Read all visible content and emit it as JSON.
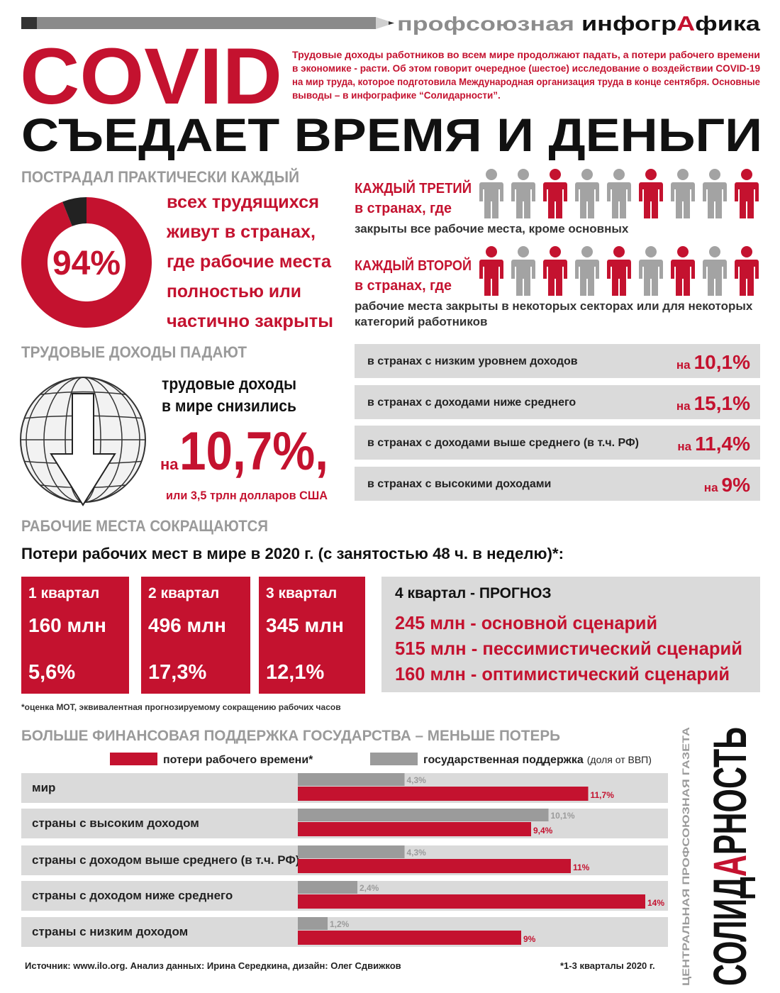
{
  "header": {
    "brand": "профсоюзная",
    "logo": [
      "инфогр",
      "А",
      "фика"
    ]
  },
  "title": "COVID",
  "subtitle": "СЪЕДАЕТ ВРЕМЯ И ДЕНЬГИ",
  "intro": [
    "Трудовые доходы работников во всем мире продолжают падать, а потери рабочего времени",
    "в экономике - расти. Об этом говорит очередное (шестое) исследование о воздействии COVID-19",
    "на мир труда, которое подготовила Международная организация труда в конце сентября. Основные",
    "выводы – в инфографике “Солидарности”."
  ],
  "affected": {
    "heading": "ПОСТРАДАЛ ПРАКТИЧЕСКИ КАЖДЫЙ",
    "share": {
      "value": 94,
      "label": "94%"
    },
    "text": [
      "всех трудящихся",
      "живут в странах,",
      "где рабочие места",
      "полностью или",
      "частично закрыты"
    ],
    "groups": [
      {
        "title": "КАЖДЫЙ ТРЕТИЙ",
        "where": "в странах, где",
        "text": [
          "закрыты все рабочие места, кроме основных"
        ]
      },
      {
        "title": "КАЖДЫЙ ВТОРОЙ",
        "where": "в странах, где",
        "text": [
          "рабочие места закрыты в некоторых секторах или для некоторых",
          "категорий работников"
        ]
      }
    ]
  },
  "income": {
    "heading": "ТРУДОВЫЕ ДОХОДЫ ПАДАЮТ",
    "text": [
      "трудовые доходы",
      "в мире снизились"
    ],
    "prefix": "на",
    "drop": "10,7%,",
    "note": "или 3,5 трлн долларов США",
    "rows": [
      {
        "label": "в странах с низким уровнем доходов",
        "prefix": "на",
        "value": "10,1%"
      },
      {
        "label": "в странах с доходами ниже среднего",
        "prefix": "на",
        "value": "15,1%"
      },
      {
        "label": "в странах с доходами выше среднего (в т.ч. РФ)",
        "prefix": "на",
        "value": "11,4%"
      },
      {
        "label": "в странах с высокими доходами",
        "prefix": "на",
        "value": "9%"
      }
    ]
  },
  "jobs": {
    "heading": "РАБОЧИЕ МЕСТА СОКРАЩАЮТСЯ",
    "subtitle": "Потери рабочих мест в мире в 2020 г. (с занятостью 48 ч. в неделю)*:",
    "quarters": [
      {
        "name": "1 квартал",
        "jobs": "160 млн",
        "share": "5,6%"
      },
      {
        "name": "2 квартал",
        "jobs": "496 млн",
        "share": "17,3%"
      },
      {
        "name": "3 квартал",
        "jobs": "345 млн",
        "share": "12,1%"
      }
    ],
    "forecast": {
      "title": "4 квартал - ПРОГНОЗ",
      "lines": [
        "245 млн - основной сценарий",
        "515 млн - пессимистический сценарий",
        "160 млн - оптимистический сценарий"
      ]
    },
    "note": "*оценка МОТ, эквивалентная прогнозируемому сокращению рабочих часов"
  },
  "chart_data": {
    "type": "bar",
    "title": "БОЛЬШЕ ФИНАНСОВАЯ ПОДДЕРЖКА ГОСУДАРСТВА – МЕНЬШЕ ПОТЕРЬ",
    "categories": [
      "мир",
      "страны с высоким доходом",
      "страны с доходом выше среднего (в т.ч. РФ)",
      "страны с доходом ниже среднего",
      "страны с низким доходом"
    ],
    "series": [
      {
        "name": "потери рабочего времени*",
        "color": "#c4122f",
        "values": [
          11.7,
          9.4,
          11,
          14,
          9
        ],
        "value_labels": [
          "11,7%",
          "9,4%",
          "11%",
          "14%",
          "9%"
        ]
      },
      {
        "name": "государственная поддержка",
        "note": "(доля от ВВП)",
        "color": "#9b9b9b",
        "values": [
          4.3,
          10.1,
          4.3,
          2.4,
          1.2
        ],
        "value_labels": [
          "4,3%",
          "10,1%",
          "4,3%",
          "2,4%",
          "1,2%"
        ]
      }
    ]
  },
  "footer": {
    "source": "Источник: www.ilo.org.  Анализ данных: Ирина Середкина, дизайн: Олег Сдвижков",
    "footnote": "*1-3 кварталы 2020 г.",
    "paper": "ЦЕНТРАЛЬНАЯ ПРОФСОЮЗНАЯ ГАЗЕТА",
    "logo": [
      "СОЛИД",
      "А",
      "РНОСТЬ"
    ]
  }
}
